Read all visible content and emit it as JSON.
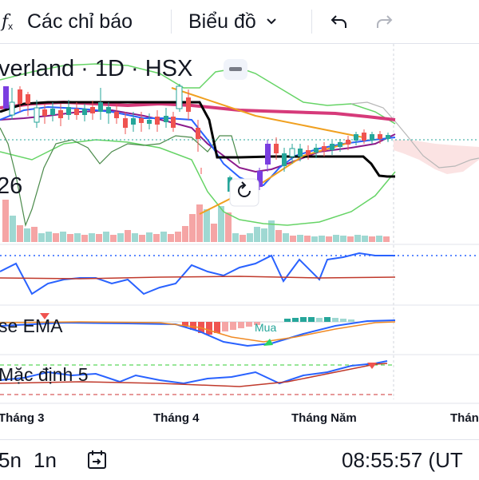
{
  "toolbar": {
    "indicators_label": "Các chỉ báo",
    "chart_type_label": "Biểu đồ"
  },
  "chart": {
    "symbol_title": "verland · 1D · HSX",
    "price_fragment": "26",
    "indicator2_label": "se EMA",
    "indicator2_tag": "Mua",
    "indicator3_label": "Mặc định 5",
    "x_labels": [
      "Tháng 3",
      "Tháng 4",
      "Tháng Năm",
      "Thán"
    ]
  },
  "bottom": {
    "interval_1": "5n",
    "interval_2": "1n",
    "clock": "08:55:57 (UT"
  },
  "colors": {
    "up": "#26a69a",
    "down": "#ef5350",
    "accent_blue": "#2962ff"
  }
}
